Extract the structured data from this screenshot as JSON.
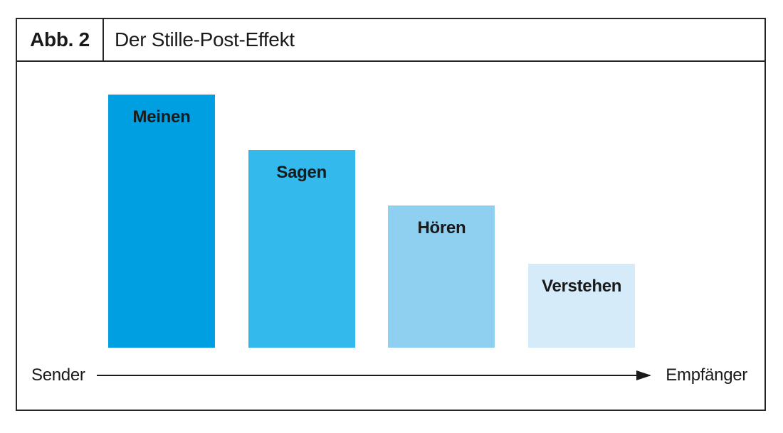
{
  "figure": {
    "label": "Abb. 2",
    "title": "Der Stille-Post-Effekt"
  },
  "axis": {
    "left_label": "Sender",
    "right_label": "Empfänger"
  },
  "chart_data": {
    "type": "bar",
    "title": "Der Stille-Post-Effekt",
    "categories": [
      "Meinen",
      "Sagen",
      "Hören",
      "Verstehen"
    ],
    "values": [
      100,
      78,
      56,
      33
    ],
    "value_scale": "relative bar height, Meinen = 100 (no numeric axis shown)",
    "bar_colors": [
      "#009FE1",
      "#33B9EB",
      "#8FD0F0",
      "#D6EBF9"
    ],
    "bar_label_color": "#1a1a1a",
    "xlabel": "Sender → Empfänger",
    "ylabel": "",
    "ylim": [
      0,
      112
    ],
    "grid": false,
    "legend": "none",
    "x_axis_style": "arrow from Sender to Empfänger"
  }
}
